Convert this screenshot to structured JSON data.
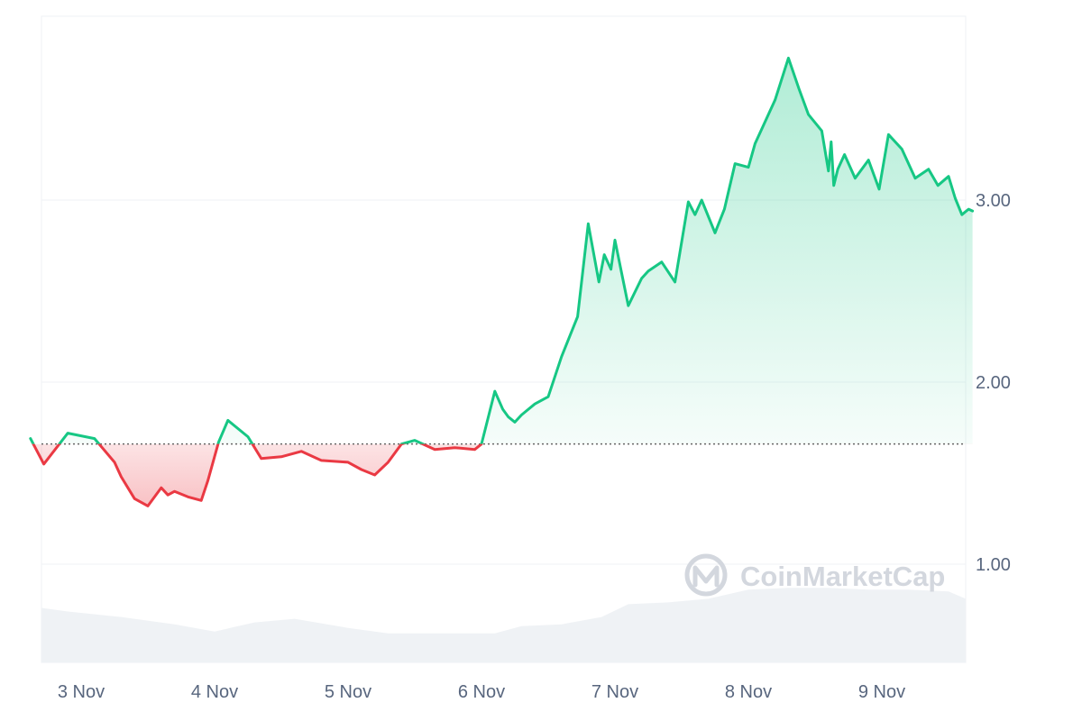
{
  "chart_data": {
    "type": "line",
    "title": "",
    "xlabel": "",
    "ylabel": "",
    "ylim": [
      0.45,
      4.0
    ],
    "baseline": 1.66,
    "x_ticks": [
      "3 Nov",
      "4 Nov",
      "5 Nov",
      "6 Nov",
      "7 Nov",
      "8 Nov",
      "9 Nov"
    ],
    "y_ticks": [
      "1.00",
      "2.00",
      "3.00"
    ],
    "y_tick_values": [
      1.0,
      2.0,
      3.0
    ],
    "grid": true,
    "colors": {
      "up": "#16c784",
      "down": "#ea3943",
      "volume": "#eff2f5",
      "grid": "#eff2f5",
      "baseline": "#666666"
    },
    "watermark": "CoinMarketCap",
    "series": [
      {
        "x": [
          2.62,
          2.72,
          2.9,
          3.1,
          3.25,
          3.3,
          3.4,
          3.5,
          3.6,
          3.65,
          3.7,
          3.8,
          3.9,
          3.95,
          4.03,
          4.1,
          4.25,
          4.35,
          4.5,
          4.65,
          4.8,
          5.0,
          5.1,
          5.2,
          5.3,
          5.4,
          5.5,
          5.65,
          5.8,
          5.95,
          6.0,
          6.1,
          6.16,
          6.2,
          6.25,
          6.3,
          6.4,
          6.5,
          6.6,
          6.72,
          6.8,
          6.88,
          6.92,
          6.97,
          7.0,
          7.1,
          7.2,
          7.25,
          7.35,
          7.45,
          7.55,
          7.6,
          7.65,
          7.75,
          7.82,
          7.9,
          8.0,
          8.05,
          8.1,
          8.2,
          8.3,
          8.38,
          8.45,
          8.55,
          8.6,
          8.62,
          8.64,
          8.67,
          8.72,
          8.8,
          8.9,
          8.98,
          9.05,
          9.15,
          9.25,
          9.35,
          9.42,
          9.5,
          9.55,
          9.6,
          9.65,
          9.68
        ],
        "y": [
          1.69,
          1.55,
          1.72,
          1.69,
          1.56,
          1.48,
          1.36,
          1.32,
          1.42,
          1.38,
          1.4,
          1.37,
          1.35,
          1.46,
          1.67,
          1.79,
          1.7,
          1.58,
          1.59,
          1.62,
          1.57,
          1.56,
          1.52,
          1.49,
          1.56,
          1.66,
          1.68,
          1.63,
          1.64,
          1.63,
          1.66,
          1.95,
          1.85,
          1.81,
          1.78,
          1.82,
          1.88,
          1.92,
          2.14,
          2.36,
          2.87,
          2.55,
          2.7,
          2.62,
          2.78,
          2.42,
          2.57,
          2.61,
          2.66,
          2.55,
          2.99,
          2.92,
          3.0,
          2.82,
          2.95,
          3.2,
          3.18,
          3.31,
          3.39,
          3.55,
          3.78,
          3.61,
          3.47,
          3.38,
          3.16,
          3.32,
          3.08,
          3.17,
          3.25,
          3.12,
          3.22,
          3.06,
          3.36,
          3.28,
          3.12,
          3.17,
          3.08,
          3.13,
          3.01,
          2.92,
          2.95,
          2.94
        ]
      }
    ],
    "volume": {
      "x": [
        2.25,
        2.4,
        2.6,
        2.9,
        3.3,
        3.7,
        4.0,
        4.3,
        4.6,
        5.0,
        5.3,
        5.6,
        5.9,
        6.1,
        6.3,
        6.6,
        6.9,
        7.1,
        7.4,
        7.7,
        8.0,
        8.3,
        8.6,
        8.9,
        9.2,
        9.5,
        9.65
      ],
      "y": [
        0.73,
        0.75,
        0.76,
        0.74,
        0.71,
        0.67,
        0.63,
        0.68,
        0.7,
        0.65,
        0.62,
        0.62,
        0.62,
        0.62,
        0.66,
        0.67,
        0.71,
        0.78,
        0.79,
        0.81,
        0.86,
        0.87,
        0.87,
        0.86,
        0.86,
        0.85,
        0.81
      ]
    }
  }
}
